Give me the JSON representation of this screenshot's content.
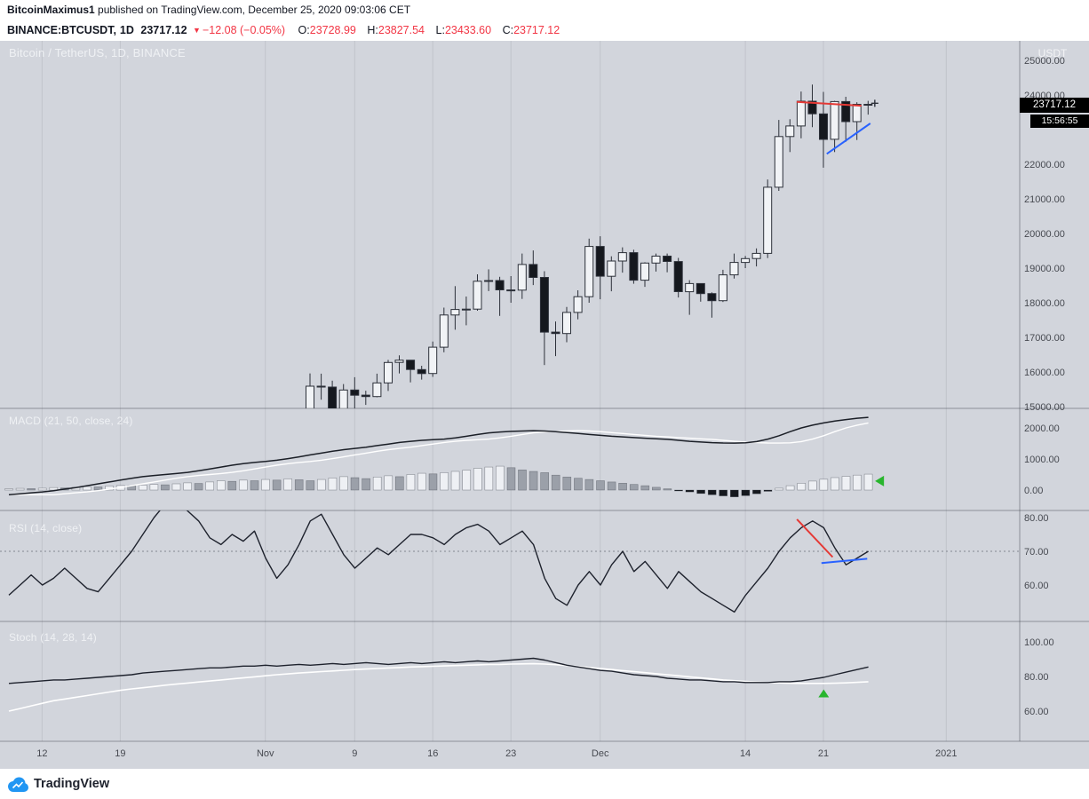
{
  "header": {
    "author": "BitcoinMaximus1",
    "published": " published on TradingView.com, December 25, 2020 09:03:06 CET"
  },
  "symbol_bar": {
    "symbol": "BINANCE:BTCUSDT,",
    "interval": "1D",
    "last": "23717.12",
    "direction_icon": "▼",
    "change": "−12.08 (−0.05%)",
    "ohlc": [
      {
        "label": "O:",
        "value": "23728.99"
      },
      {
        "label": "H:",
        "value": "23827.54"
      },
      {
        "label": "L:",
        "value": "23433.60"
      },
      {
        "label": "C:",
        "value": "23717.12"
      }
    ]
  },
  "main_pane": {
    "title": "Bitcoin / TetherUS, 1D, BINANCE",
    "axis_unit": "USDT",
    "last_price": "23717.12",
    "countdown": "15:56:55"
  },
  "panes": {
    "macd_label": "MACD (21, 50, close, 24)",
    "rsi_label": "RSI (14, close)",
    "stoch_label": "Stoch (14, 28, 14)"
  },
  "footer": {
    "brand": "TradingView"
  },
  "colors": {
    "background": "#d2d5dc",
    "grid_line": "rgba(90,95,105,0.14)",
    "divider": "rgba(55,60,70,0.45)",
    "axis_text": "#474a51",
    "candle_up": "#f1f3f6",
    "candle_down": "#15181e",
    "candle_border": "#2c3039",
    "macd_line": "#1b1f27",
    "macd_signal": "#ffffff",
    "hist_pos_grow": "#eef0f4",
    "hist_pos_fall": "#9ba0a9",
    "hist_neg": "#15181e",
    "hist_border": "rgba(55,60,70,0.5)",
    "rsi_line": "#1e222d",
    "dashed_level": "#82868f",
    "stoch_k": "#1e222d",
    "stoch_d": "#ffffff",
    "trend_red": "#e53935",
    "trend_blue": "#2962ff",
    "marker_green": "#28b52d",
    "down_red": "#f23645",
    "badge_bg": "#000000"
  },
  "chart_data": {
    "type": "candlestick",
    "symbol": "BINANCE:BTCUSDT",
    "interval": "1D",
    "price_axis": {
      "ticks": [
        25000,
        24000,
        22000,
        21000,
        20000,
        19000,
        18000,
        17000,
        16000,
        15000
      ]
    },
    "time_ticks": [
      {
        "label": "12",
        "day": -24
      },
      {
        "label": "19",
        "day": -17
      },
      {
        "label": "Nov",
        "day": -4
      },
      {
        "label": "9",
        "day": 4
      },
      {
        "label": "16",
        "day": 11
      },
      {
        "label": "23",
        "day": 18
      },
      {
        "label": "Dec",
        "day": 26
      },
      {
        "label": "14",
        "day": 39
      },
      {
        "label": "21",
        "day": 46
      },
      {
        "label": "2021",
        "day": 57
      }
    ],
    "candles": {
      "columns": [
        "date",
        "open",
        "high",
        "low",
        "close"
      ],
      "rows": [
        [
          "2020-11-05",
          14150,
          15960,
          14100,
          15590
        ],
        [
          "2020-11-06",
          15590,
          15950,
          15200,
          15565
        ],
        [
          "2020-11-07",
          15565,
          15750,
          14350,
          14835
        ],
        [
          "2020-11-08",
          14835,
          15650,
          14700,
          15480
        ],
        [
          "2020-11-09",
          15480,
          15850,
          14805,
          15330
        ],
        [
          "2020-11-10",
          15330,
          15460,
          15050,
          15290
        ],
        [
          "2020-11-11",
          15290,
          15950,
          15270,
          15685
        ],
        [
          "2020-11-12",
          15685,
          16350,
          15450,
          16275
        ],
        [
          "2020-11-13",
          16275,
          16480,
          15960,
          16340
        ],
        [
          "2020-11-14",
          16340,
          16340,
          15700,
          16070
        ],
        [
          "2020-11-15",
          16070,
          16180,
          15780,
          15955
        ],
        [
          "2020-11-16",
          15955,
          16880,
          15860,
          16715
        ],
        [
          "2020-11-17",
          16715,
          17860,
          16570,
          17645
        ],
        [
          "2020-11-18",
          17645,
          18480,
          17220,
          17805
        ],
        [
          "2020-11-19",
          17805,
          18180,
          17350,
          17815
        ],
        [
          "2020-11-20",
          17815,
          18820,
          17770,
          18620
        ],
        [
          "2020-11-21",
          18620,
          18965,
          18335,
          18640
        ],
        [
          "2020-11-22",
          18640,
          18750,
          17620,
          18370
        ],
        [
          "2020-11-23",
          18370,
          18770,
          18000,
          18365
        ],
        [
          "2020-11-24",
          18365,
          19420,
          18110,
          19105
        ],
        [
          "2020-11-25",
          19105,
          19510,
          18510,
          18730
        ],
        [
          "2020-11-26",
          18730,
          18910,
          16200,
          17150
        ],
        [
          "2020-11-27",
          17150,
          17460,
          16460,
          17110
        ],
        [
          "2020-11-28",
          17110,
          17880,
          16860,
          17720
        ],
        [
          "2020-11-29",
          17720,
          18360,
          17520,
          18175
        ],
        [
          "2020-11-30",
          18175,
          19850,
          18000,
          19625
        ],
        [
          "2020-12-01",
          19625,
          19920,
          18100,
          18765
        ],
        [
          "2020-12-02",
          18765,
          19340,
          18330,
          19205
        ],
        [
          "2020-12-03",
          19205,
          19600,
          18870,
          19445
        ],
        [
          "2020-12-04",
          19445,
          19530,
          18550,
          18650
        ],
        [
          "2020-12-05",
          18650,
          19170,
          18460,
          19145
        ],
        [
          "2020-12-06",
          19145,
          19420,
          18900,
          19345
        ],
        [
          "2020-12-07",
          19345,
          19420,
          18880,
          19190
        ],
        [
          "2020-12-08",
          19190,
          19295,
          18150,
          18320
        ],
        [
          "2020-12-09",
          18320,
          18650,
          17650,
          18555
        ],
        [
          "2020-12-10",
          18555,
          18560,
          18030,
          18265
        ],
        [
          "2020-12-11",
          18265,
          18300,
          17570,
          18060
        ],
        [
          "2020-12-12",
          18060,
          18950,
          18020,
          18805
        ],
        [
          "2020-12-13",
          18805,
          19420,
          18700,
          19165
        ],
        [
          "2020-12-14",
          19165,
          19350,
          19000,
          19275
        ],
        [
          "2020-12-15",
          19275,
          19570,
          19050,
          19425
        ],
        [
          "2020-12-16",
          19425,
          21560,
          19290,
          21335
        ],
        [
          "2020-12-17",
          21335,
          23280,
          21230,
          22800
        ],
        [
          "2020-12-18",
          22800,
          23300,
          22350,
          23105
        ],
        [
          "2020-12-19",
          23105,
          24100,
          22750,
          23820
        ],
        [
          "2020-12-20",
          23820,
          24300,
          23070,
          23455
        ],
        [
          "2020-12-21",
          23455,
          24090,
          21900,
          22720
        ],
        [
          "2020-12-22",
          22720,
          23830,
          22350,
          23810
        ],
        [
          "2020-12-23",
          23810,
          23950,
          22650,
          23230
        ],
        [
          "2020-12-24",
          23230,
          23790,
          22700,
          23730
        ],
        [
          "2020-12-25",
          23730,
          23830,
          23434,
          23717
        ]
      ]
    },
    "macd": {
      "ticks": [
        2000,
        1000,
        0
      ],
      "line": [
        -150,
        -120,
        -90,
        -60,
        -20,
        30,
        80,
        140,
        200,
        260,
        320,
        380,
        430,
        470,
        500,
        530,
        570,
        620,
        680,
        740,
        800,
        850,
        890,
        920,
        960,
        1010,
        1070,
        1130,
        1190,
        1250,
        1300,
        1340,
        1380,
        1430,
        1480,
        1530,
        1570,
        1600,
        1620,
        1640,
        1680,
        1730,
        1790,
        1840,
        1870,
        1890,
        1900,
        1910,
        1900,
        1880,
        1850,
        1820,
        1790,
        1760,
        1730,
        1710,
        1690,
        1670,
        1650,
        1630,
        1600,
        1570,
        1545,
        1525,
        1515,
        1510,
        1520,
        1560,
        1640,
        1750,
        1880,
        2000,
        2090,
        2160,
        2220,
        2270,
        2310,
        2340
      ],
      "signal": [
        -150,
        -150,
        -150,
        -150,
        -150,
        -120,
        -90,
        -60,
        -20,
        30,
        80,
        140,
        200,
        260,
        320,
        380,
        430,
        470,
        500,
        530,
        570,
        620,
        680,
        740,
        800,
        850,
        890,
        920,
        960,
        1010,
        1070,
        1130,
        1190,
        1250,
        1300,
        1340,
        1380,
        1430,
        1480,
        1530,
        1570,
        1600,
        1620,
        1640,
        1680,
        1730,
        1790,
        1840,
        1870,
        1890,
        1900,
        1910,
        1900,
        1880,
        1850,
        1820,
        1790,
        1760,
        1730,
        1710,
        1690,
        1670,
        1650,
        1630,
        1600,
        1570,
        1545,
        1525,
        1515,
        1510,
        1520,
        1560,
        1640,
        1750,
        1880,
        2000,
        2090,
        2160
      ],
      "histogram": [
        40,
        55,
        45,
        60,
        80,
        70,
        90,
        110,
        100,
        130,
        150,
        140,
        160,
        180,
        170,
        200,
        230,
        210,
        260,
        300,
        280,
        320,
        300,
        340,
        320,
        360,
        330,
        300,
        340,
        390,
        430,
        400,
        370,
        420,
        460,
        430,
        500,
        540,
        520,
        560,
        600,
        640,
        700,
        740,
        770,
        720,
        650,
        600,
        560,
        480,
        420,
        380,
        340,
        300,
        260,
        220,
        180,
        140,
        90,
        40,
        -20,
        -60,
        -110,
        -150,
        -190,
        -220,
        -180,
        -120,
        -40,
        60,
        140,
        220,
        290,
        350,
        400,
        440,
        480,
        510
      ]
    },
    "rsi": {
      "ticks": [
        80,
        70,
        60
      ],
      "overbought_line": 70,
      "values": [
        57,
        60,
        63,
        60,
        62,
        65,
        62,
        59,
        58,
        62,
        66,
        70,
        75,
        80,
        84,
        85,
        82,
        79,
        74,
        72,
        75,
        73,
        76,
        68,
        62,
        66,
        72,
        79,
        81,
        75,
        69,
        65,
        68,
        71,
        69,
        72,
        75,
        75,
        74,
        72,
        75,
        77,
        78,
        76,
        72,
        74,
        76,
        72,
        62,
        56,
        54,
        60,
        64,
        60,
        66,
        70,
        64,
        67,
        63,
        59,
        64,
        61,
        58,
        56,
        54,
        52,
        57,
        61,
        65,
        70,
        74,
        77,
        79,
        77,
        71,
        66,
        68,
        70
      ]
    },
    "stoch": {
      "ticks": [
        100,
        80,
        60
      ],
      "k": [
        76,
        76.5,
        77,
        77.5,
        78,
        78,
        78.5,
        79,
        79.5,
        80,
        80.5,
        81,
        82,
        82.5,
        83,
        83.5,
        84,
        84.5,
        85,
        85,
        85.5,
        86,
        86,
        86.5,
        86,
        86.5,
        87,
        86.5,
        87,
        87.5,
        87,
        87.5,
        88,
        87.5,
        87,
        87.5,
        88,
        87.5,
        88,
        88.5,
        88,
        88.5,
        89,
        88.5,
        89,
        89.5,
        90,
        90.5,
        89.5,
        88,
        86.5,
        85.5,
        84.5,
        83.5,
        83,
        82,
        81,
        80.5,
        80,
        79,
        78.5,
        78,
        78,
        77.5,
        77,
        77,
        76.5,
        76.5,
        76.5,
        77,
        77,
        77.5,
        78.5,
        79.5,
        81,
        82.5,
        84,
        85.5
      ],
      "d": [
        60,
        61.5,
        63,
        64.5,
        66,
        67,
        68,
        69,
        70,
        71,
        72,
        72.8,
        73.5,
        74.2,
        75,
        75.6,
        76.2,
        76.8,
        77.4,
        78,
        78.6,
        79.2,
        79.8,
        80.4,
        81,
        81.5,
        82,
        82.4,
        82.8,
        83.2,
        83.6,
        84,
        84.3,
        84.6,
        84.9,
        85.2,
        85.5,
        85.7,
        85.9,
        86.1,
        86.3,
        86.5,
        86.7,
        86.9,
        87,
        87.2,
        87.3,
        87.4,
        87.2,
        86.8,
        86.3,
        85.8,
        85.2,
        84.6,
        84,
        83.4,
        82.8,
        82.2,
        81.6,
        81,
        80.4,
        79.8,
        79.2,
        78.6,
        78,
        77.6,
        77.2,
        76.8,
        76.5,
        76.3,
        76.1,
        76,
        76,
        76,
        76.1,
        76.3,
        76.6,
        77
      ]
    },
    "drawings": {
      "price": [
        {
          "type": "trendline",
          "color_key": "trend_red",
          "i1": 43.6,
          "v1": 23800,
          "i2": 49.4,
          "v2": 23690
        },
        {
          "type": "trendline",
          "color_key": "trend_blue",
          "i1": 46.3,
          "v1": 22300,
          "i2": 50.2,
          "v2": 23180
        },
        {
          "type": "plus_marker",
          "i": 50.6,
          "v": 23760
        }
      ],
      "rsi": [
        {
          "type": "trendline",
          "color_key": "trend_red",
          "j1": 70.6,
          "v1": 79.5,
          "j2": 73.8,
          "v2": 68.3
        },
        {
          "type": "trendline",
          "color_key": "trend_blue",
          "j1": 72.8,
          "v1": 66.5,
          "j2": 76.9,
          "v2": 67.8
        }
      ],
      "macd_marker": {
        "type": "arrow_left",
        "j": 78,
        "v": 290
      },
      "stoch_marker": {
        "type": "triangle_up",
        "j": 73,
        "v": 70
      }
    }
  }
}
